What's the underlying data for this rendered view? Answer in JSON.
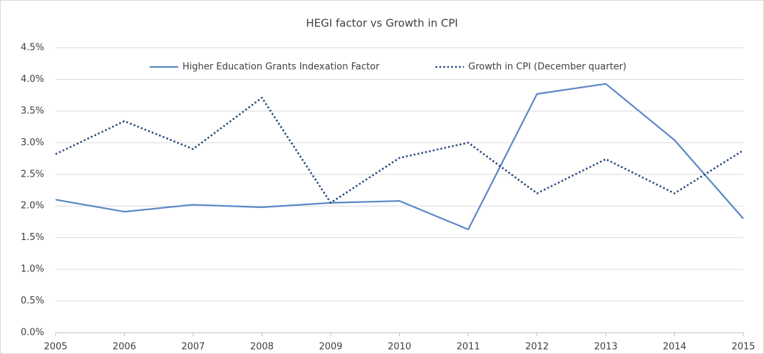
{
  "chart_data": {
    "type": "line",
    "title": "HEGI factor vs Growth in CPI",
    "x": [
      2005,
      2006,
      2007,
      2008,
      2009,
      2010,
      2011,
      2012,
      2013,
      2014,
      2015
    ],
    "xlim": [
      2005,
      2015
    ],
    "xticks": [
      2005,
      2006,
      2007,
      2008,
      2009,
      2010,
      2011,
      2012,
      2013,
      2014,
      2015
    ],
    "ylim": [
      0,
      4.5
    ],
    "yticks": [
      {
        "value": 0,
        "label": "0.0%"
      },
      {
        "value": 0.5,
        "label": "0.5%"
      },
      {
        "value": 1,
        "label": "1.0%"
      },
      {
        "value": 1.5,
        "label": "1.5%"
      },
      {
        "value": 2,
        "label": "2.0%"
      },
      {
        "value": 2.5,
        "label": "2.5%"
      },
      {
        "value": 3,
        "label": "3.0%"
      },
      {
        "value": 3.5,
        "label": "3.5%"
      },
      {
        "value": 4,
        "label": "4.0%"
      },
      {
        "value": 4.5,
        "label": "4.5%"
      }
    ],
    "grid": true,
    "legend": "top",
    "series": [
      {
        "name": "Higher Education Grants Indexation Factor",
        "color": "#5b87c5",
        "style": "solid",
        "values": [
          2.1,
          1.91,
          2.02,
          1.98,
          2.05,
          2.08,
          1.63,
          3.77,
          3.93,
          3.04,
          1.8
        ]
      },
      {
        "name": "Growth in CPI (December quarter)",
        "color": "#2c4d7e",
        "style": "dotted",
        "values": [
          2.82,
          3.34,
          2.9,
          3.71,
          2.05,
          2.76,
          3.0,
          2.2,
          2.74,
          2.2,
          2.88
        ]
      }
    ]
  }
}
